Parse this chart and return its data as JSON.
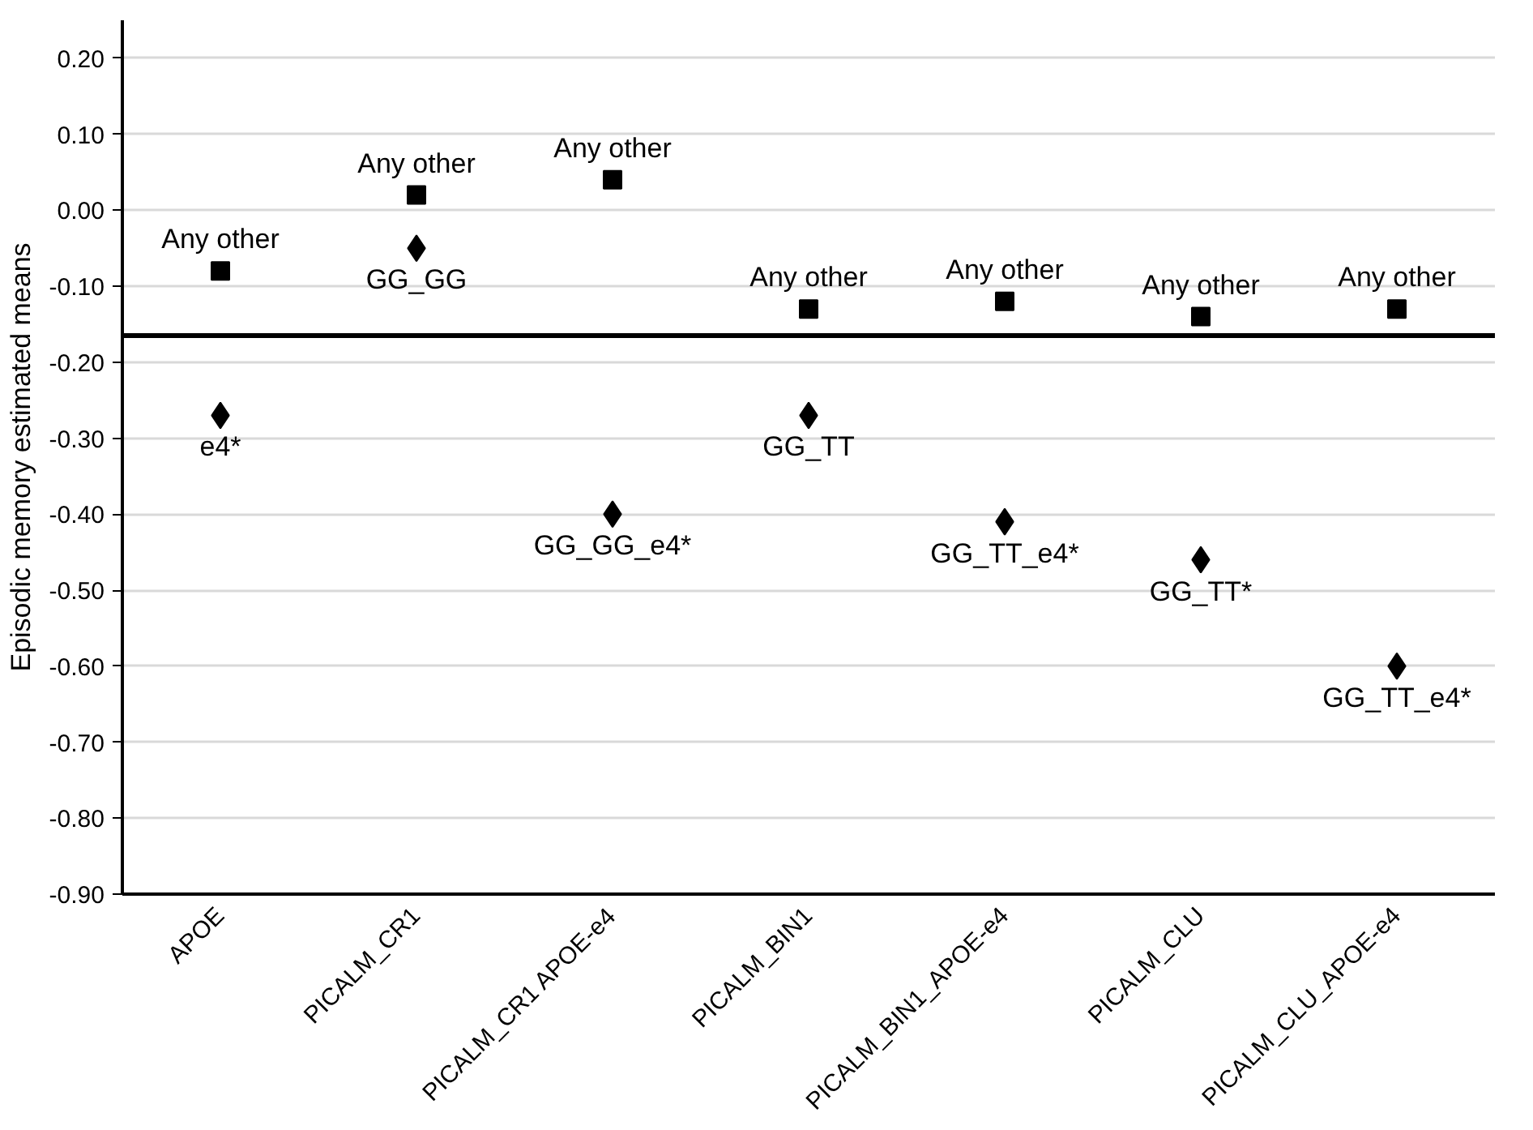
{
  "chart_data": {
    "type": "scatter",
    "ylabel": "Episodic memory estimated means",
    "categories": [
      "APOE",
      "PICALM_CR1",
      "PICALM_CR1 APOE-e4",
      "PICALM_BIN1",
      "PICALM_BIN1_APOE-e4",
      "PICALM_CLU",
      "PICALM_CLU_APOE-e4"
    ],
    "series": [
      {
        "color": "#000000",
        "marker": "square",
        "values": [
          -0.08,
          0.02,
          0.04,
          -0.13,
          -0.12,
          -0.14,
          -0.13
        ],
        "value_labels": [
          "Any other",
          "Any other",
          "Any other",
          "Any other",
          "Any other",
          "Any other",
          "Any other"
        ]
      },
      {
        "color": "#000000",
        "marker": "diamond",
        "values": [
          -0.27,
          -0.05,
          -0.4,
          -0.27,
          -0.41,
          -0.46,
          -0.6
        ],
        "value_labels": [
          "e4*",
          "GG_GG",
          "GG_GG_e4*",
          "GG_TT",
          "GG_TT_e4*",
          "GG_TT*",
          "GG_TT_e4*"
        ]
      }
    ],
    "ylim": [
      -0.9,
      0.25
    ],
    "yticks": [
      {
        "value": -0.9,
        "label": "-0.90"
      },
      {
        "value": -0.8,
        "label": "-0.80"
      },
      {
        "value": -0.7,
        "label": "-0.70"
      },
      {
        "value": -0.6,
        "label": "-0.60"
      },
      {
        "value": -0.5,
        "label": "-0.50"
      },
      {
        "value": -0.4,
        "label": "-0.40"
      },
      {
        "value": -0.3,
        "label": "-0.30"
      },
      {
        "value": -0.2,
        "label": "-0.20"
      },
      {
        "value": -0.1,
        "label": "-0.10"
      },
      {
        "value": 0,
        "label": "0.00"
      },
      {
        "value": 0.1,
        "label": "0.10"
      },
      {
        "value": 0.2,
        "label": "0.20"
      }
    ],
    "ref_lines": [
      {
        "axis": "y",
        "value": -0.165,
        "color": "#000000",
        "line_style": "solid"
      }
    ],
    "grid": "y"
  }
}
